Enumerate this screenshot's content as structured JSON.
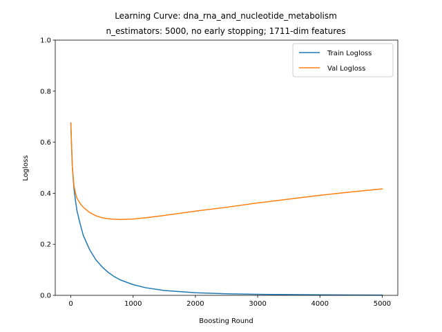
{
  "chart_data": {
    "type": "line",
    "title": "Learning Curve: dna_rna_and_nucleotide_metabolism",
    "subtitle": "n_estimators: 5000, no early stopping; 1711-dim features",
    "xlabel": "Boosting Round",
    "ylabel": "Logloss",
    "xlim": [
      -250,
      5250
    ],
    "ylim": [
      0,
      1.0
    ],
    "xticks": [
      0,
      1000,
      2000,
      3000,
      4000,
      5000
    ],
    "xtick_labels": [
      "0",
      "1000",
      "2000",
      "3000",
      "4000",
      "5000"
    ],
    "yticks": [
      0.0,
      0.2,
      0.4,
      0.6,
      0.8,
      1.0
    ],
    "ytick_labels": [
      "0.0",
      "0.2",
      "0.4",
      "0.6",
      "0.8",
      "1.0"
    ],
    "grid": false,
    "legend_position": "top-right",
    "series": [
      {
        "name": "Train Logloss",
        "color": "#1f77b4",
        "x": [
          0,
          10,
          25,
          50,
          75,
          100,
          150,
          200,
          300,
          400,
          500,
          600,
          700,
          800,
          1000,
          1200,
          1500,
          2000,
          2500,
          3000,
          3500,
          4000,
          4500,
          5000
        ],
        "y": [
          0.675,
          0.6,
          0.5,
          0.42,
          0.37,
          0.33,
          0.28,
          0.235,
          0.18,
          0.14,
          0.112,
          0.09,
          0.073,
          0.06,
          0.042,
          0.03,
          0.019,
          0.01,
          0.006,
          0.004,
          0.003,
          0.002,
          0.0015,
          0.001
        ]
      },
      {
        "name": "Val Logloss",
        "color": "#ff7f0e",
        "x": [
          0,
          10,
          25,
          50,
          75,
          100,
          150,
          200,
          300,
          400,
          500,
          600,
          700,
          800,
          1000,
          1200,
          1500,
          2000,
          2500,
          3000,
          3500,
          4000,
          4500,
          5000
        ],
        "y": [
          0.675,
          0.6,
          0.5,
          0.43,
          0.4,
          0.38,
          0.36,
          0.345,
          0.325,
          0.312,
          0.304,
          0.3,
          0.298,
          0.297,
          0.299,
          0.304,
          0.313,
          0.33,
          0.345,
          0.362,
          0.377,
          0.392,
          0.405,
          0.417
        ]
      }
    ]
  }
}
